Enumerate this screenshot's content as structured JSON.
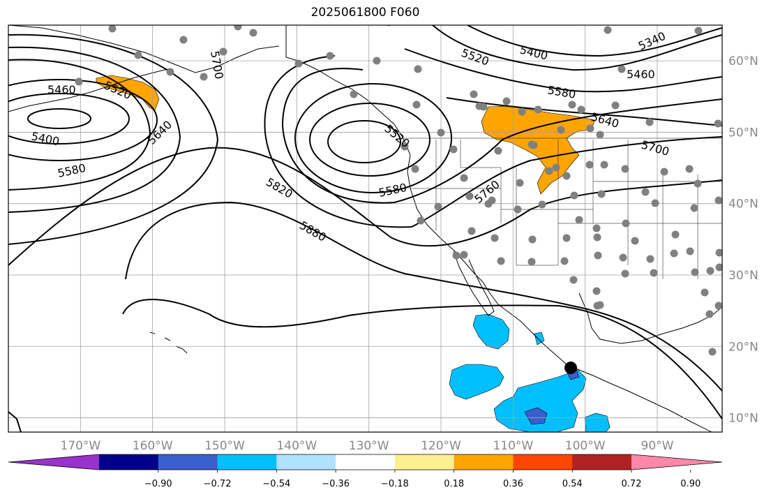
{
  "title": "2025061800 F060",
  "map": {
    "lon_range": [
      -180,
      -81
    ],
    "lat_range": [
      8,
      65
    ],
    "gridlines": true,
    "lon_ticks": [
      "170°W",
      "160°W",
      "150°W",
      "140°W",
      "130°W",
      "120°W",
      "110°W",
      "100°W",
      "90°W"
    ],
    "lat_ticks": [
      "10°N",
      "20°N",
      "30°N",
      "40°N",
      "50°N",
      "60°N"
    ],
    "contour_levels_shown": [
      "5340",
      "5400",
      "5460",
      "5520",
      "5580",
      "5640",
      "5700",
      "5760",
      "5820",
      "5880"
    ],
    "marker": {
      "lon": -102,
      "lat": 17,
      "color": "#000000"
    },
    "colors": {
      "contour": "#000000",
      "station": "#808080",
      "grid": "#a0a0a0",
      "orange": "#ffa500",
      "deepskyblue": "#00bfff",
      "royalblue": "#3a5fcd"
    }
  },
  "colorbar": {
    "ticks": [
      "−0.90",
      "−0.72",
      "−0.54",
      "−0.36",
      "−0.18",
      "0.18",
      "0.36",
      "0.54",
      "0.72",
      "0.90"
    ],
    "colors": [
      "#9932cc",
      "#00008b",
      "#3a5fcd",
      "#00bfff",
      "#b0e2ff",
      "#ffffff",
      "#fff08f",
      "#ffa500",
      "#ff4500",
      "#b22222",
      "#ff88aa"
    ]
  }
}
